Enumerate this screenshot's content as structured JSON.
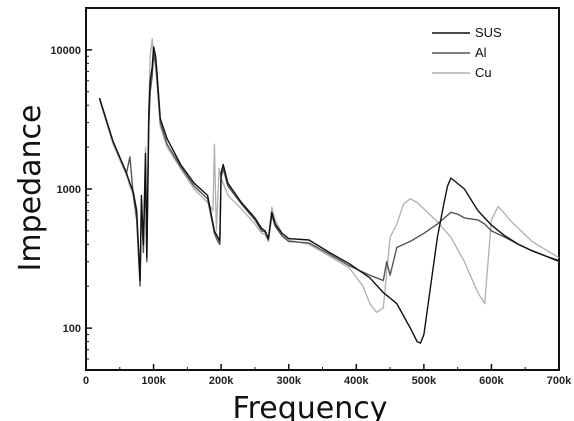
{
  "chart_data": {
    "type": "line",
    "title": "",
    "xlabel": "Frequency",
    "ylabel": "Impedance",
    "xlim": [
      0,
      700000
    ],
    "ylim": [
      50,
      20000
    ],
    "y_scale": "log",
    "grid": false,
    "legend_position": "top-right",
    "x_ticks": [
      0,
      100000,
      200000,
      300000,
      400000,
      500000,
      600000,
      700000
    ],
    "x_tick_labels": [
      "0",
      "100k",
      "200k",
      "300k",
      "400k",
      "500k",
      "600k",
      "700k"
    ],
    "y_ticks": [
      100,
      1000,
      10000
    ],
    "y_tick_labels": [
      "100",
      "1000",
      "10000"
    ],
    "series": [
      {
        "name": "SUS",
        "color": "#111111",
        "x": [
          20000,
          40000,
          60000,
          65000,
          70000,
          75000,
          80000,
          82000,
          85000,
          88000,
          90000,
          93000,
          95000,
          98000,
          100000,
          103000,
          105000,
          110000,
          120000,
          140000,
          160000,
          180000,
          190000,
          195000,
          198000,
          200000,
          203000,
          210000,
          230000,
          250000,
          260000,
          265000,
          270000,
          275000,
          280000,
          290000,
          300000,
          330000,
          360000,
          390000,
          420000,
          440000,
          460000,
          480000,
          490000,
          495000,
          500000,
          520000,
          530000,
          535000,
          540000,
          560000,
          580000,
          600000,
          620000,
          640000,
          660000,
          680000,
          700000
        ],
        "y": [
          4500,
          2200,
          1300,
          1100,
          950,
          700,
          220,
          900,
          400,
          1800,
          320,
          3500,
          6000,
          7500,
          10500,
          9000,
          7000,
          3200,
          2300,
          1500,
          1100,
          900,
          500,
          450,
          420,
          1300,
          1500,
          1100,
          800,
          620,
          520,
          500,
          440,
          680,
          560,
          480,
          440,
          430,
          350,
          290,
          230,
          180,
          150,
          100,
          80,
          78,
          90,
          450,
          800,
          1050,
          1200,
          1000,
          700,
          550,
          460,
          400,
          360,
          330,
          305
        ]
      },
      {
        "name": "Al",
        "color": "#555555",
        "x": [
          20000,
          40000,
          60000,
          65000,
          70000,
          75000,
          80000,
          82000,
          85000,
          88000,
          90000,
          93000,
          95000,
          98000,
          100000,
          103000,
          105000,
          110000,
          120000,
          140000,
          160000,
          180000,
          190000,
          195000,
          198000,
          200000,
          203000,
          210000,
          230000,
          250000,
          260000,
          265000,
          270000,
          275000,
          280000,
          290000,
          300000,
          330000,
          360000,
          390000,
          420000,
          440000,
          445000,
          450000,
          460000,
          470000,
          480000,
          500000,
          520000,
          540000,
          550000,
          560000,
          580000,
          590000,
          600000,
          620000,
          640000,
          660000,
          680000,
          700000
        ],
        "y": [
          4500,
          2200,
          1300,
          1700,
          900,
          600,
          200,
          800,
          350,
          1500,
          300,
          2800,
          5000,
          6500,
          9500,
          8000,
          6200,
          3000,
          2100,
          1450,
          1050,
          850,
          480,
          420,
          400,
          1200,
          1400,
          1050,
          780,
          600,
          500,
          490,
          430,
          650,
          540,
          460,
          420,
          410,
          340,
          280,
          240,
          220,
          300,
          240,
          380,
          400,
          420,
          480,
          560,
          680,
          660,
          620,
          600,
          560,
          500,
          450,
          400,
          360,
          330,
          300
        ]
      },
      {
        "name": "Cu",
        "color": "#b0b0b0",
        "x": [
          20000,
          40000,
          60000,
          65000,
          70000,
          75000,
          80000,
          82000,
          85000,
          88000,
          90000,
          93000,
          95000,
          98000,
          100000,
          103000,
          105000,
          110000,
          120000,
          140000,
          160000,
          180000,
          188000,
          190000,
          193000,
          197000,
          200000,
          210000,
          230000,
          250000,
          260000,
          265000,
          270000,
          275000,
          280000,
          290000,
          300000,
          330000,
          360000,
          390000,
          410000,
          420000,
          430000,
          440000,
          450000,
          460000,
          470000,
          480000,
          490000,
          500000,
          520000,
          540000,
          560000,
          580000,
          590000,
          600000,
          610000,
          630000,
          660000,
          700000
        ],
        "y": [
          4400,
          2100,
          1250,
          1050,
          900,
          650,
          210,
          750,
          380,
          2000,
          350,
          4000,
          9000,
          12000,
          9500,
          7500,
          6000,
          2800,
          2000,
          1400,
          1000,
          800,
          700,
          2100,
          500,
          1400,
          1200,
          900,
          720,
          560,
          480,
          470,
          420,
          740,
          600,
          480,
          430,
          400,
          330,
          270,
          200,
          150,
          130,
          140,
          450,
          560,
          780,
          850,
          800,
          720,
          580,
          450,
          300,
          180,
          150,
          600,
          750,
          580,
          420,
          320
        ]
      }
    ]
  }
}
